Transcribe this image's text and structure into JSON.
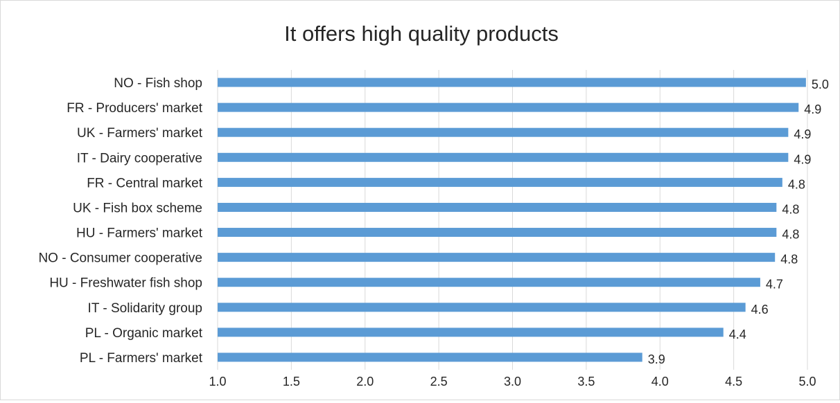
{
  "chart_data": {
    "type": "bar",
    "orientation": "horizontal",
    "title": "It offers high quality products",
    "xlabel": "",
    "ylabel": "",
    "categories": [
      "NO - Fish shop",
      "FR - Producers' market",
      "UK - Farmers' market",
      "IT - Dairy cooperative",
      "FR - Central market",
      "UK -  Fish box scheme",
      "HU - Farmers' market",
      "NO - Consumer cooperative",
      "HU - Freshwater fish shop",
      "IT - Solidarity group",
      "PL - Organic market",
      "PL - Farmers' market"
    ],
    "values": [
      4.99,
      4.94,
      4.87,
      4.87,
      4.83,
      4.79,
      4.79,
      4.78,
      4.68,
      4.58,
      4.43,
      3.88
    ],
    "value_labels": [
      "5.0",
      "4.9",
      "4.9",
      "4.9",
      "4.8",
      "4.8",
      "4.8",
      "4.8",
      "4.7",
      "4.6",
      "4.4",
      "3.9"
    ],
    "xlim": [
      1.0,
      5.0
    ],
    "xticks": [
      "1.0",
      "1.5",
      "2.0",
      "2.5",
      "3.0",
      "3.5",
      "4.0",
      "4.5",
      "5.0"
    ],
    "grid": true,
    "legend": "none",
    "bar_color": "#5b9bd5"
  }
}
